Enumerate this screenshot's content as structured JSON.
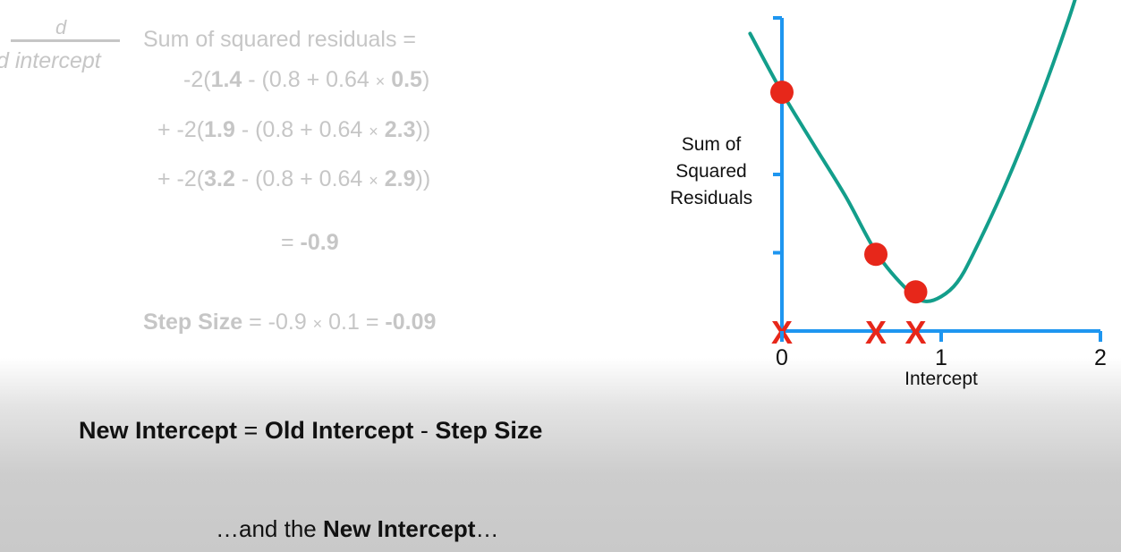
{
  "derivative": {
    "numerator": "d",
    "denominator": "d intercept",
    "lhs": "Sum of squared residuals ="
  },
  "terms": [
    {
      "prefix": "-2(",
      "obs": "1.4",
      "mid": " - (0.8 + 0.64 ",
      "times": "×",
      "x": "0.5",
      "suffix": ")"
    },
    {
      "prefix": "+ -2(",
      "obs": "1.9",
      "mid": " - (0.8 + 0.64 ",
      "times": "×",
      "x": "2.3",
      "suffix": "))"
    },
    {
      "prefix": "+ -2(",
      "obs": "3.2",
      "mid": " - (0.8 + 0.64 ",
      "times": "×",
      "x": "2.9",
      "suffix": "))"
    }
  ],
  "result": {
    "eq": "= ",
    "value": "-0.9"
  },
  "step": {
    "label": "Step Size",
    "calc_a": " = -0.9 ",
    "times": "×",
    "calc_b": " 0.1 = ",
    "value": "-0.09"
  },
  "update_rule": {
    "new": "New Intercept",
    "eq": " = ",
    "old": "Old Intercept",
    "minus": " - ",
    "step": "Step Size"
  },
  "caption": {
    "pre": "…and the ",
    "bold": "New Intercept",
    "post": "…"
  },
  "chart_data": {
    "type": "line",
    "ylabel_lines": [
      "Sum of",
      "Squared",
      "Residuals"
    ],
    "xlabel": "Intercept",
    "x_ticks": [
      "0",
      "1",
      "2"
    ],
    "xlim": [
      0,
      2
    ],
    "ylim": [
      0,
      4
    ],
    "series": [
      {
        "color": "#139e8b",
        "x": [
          -0.2,
          0,
          0.2,
          0.4,
          0.6,
          0.8,
          0.9,
          1.0,
          1.1,
          1.2,
          1.4,
          1.6,
          1.8,
          1.91
        ],
        "y": [
          3.8,
          3.05,
          2.38,
          1.72,
          0.98,
          0.5,
          0.38,
          0.44,
          0.62,
          0.98,
          1.85,
          2.85,
          3.98,
          4.7
        ]
      }
    ],
    "points": [
      {
        "x": 0,
        "y": 3.05,
        "color": "#e7271a"
      },
      {
        "x": 0.59,
        "y": 0.98,
        "color": "#e7271a"
      },
      {
        "x": 0.84,
        "y": 0.5,
        "color": "#e7271a"
      }
    ],
    "x_markers": [
      0,
      0.59,
      0.84
    ],
    "marker_label": "X",
    "axis_color": "#1e96f0",
    "grid": false
  }
}
